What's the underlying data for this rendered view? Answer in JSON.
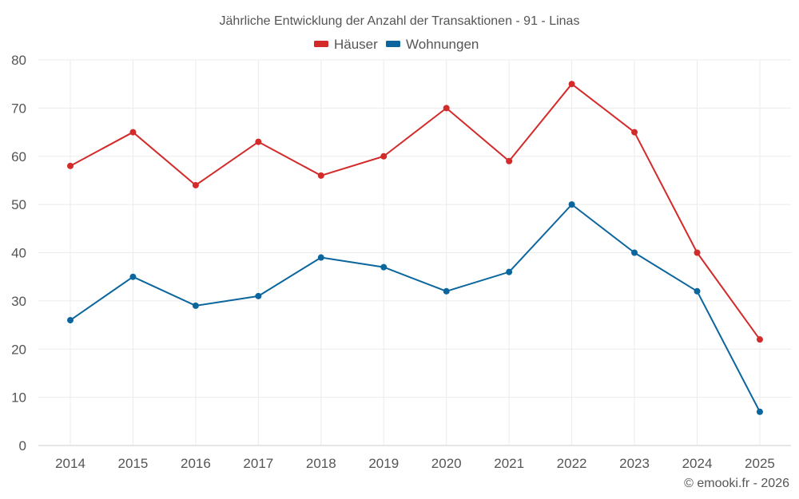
{
  "chart_data": {
    "type": "line",
    "title": "Jährliche Entwicklung der Anzahl der Transaktionen - 91 - Linas",
    "categories": [
      "2014",
      "2015",
      "2016",
      "2017",
      "2018",
      "2019",
      "2020",
      "2021",
      "2022",
      "2023",
      "2024",
      "2025"
    ],
    "series": [
      {
        "name": "Häuser",
        "color": "#d32a2a",
        "values": [
          58,
          65,
          54,
          63,
          56,
          60,
          70,
          59,
          75,
          65,
          40,
          22
        ]
      },
      {
        "name": "Wohnungen",
        "color": "#0b669d",
        "values": [
          26,
          35,
          29,
          31,
          39,
          37,
          32,
          36,
          50,
          40,
          32,
          7
        ]
      }
    ],
    "ylim": [
      0,
      80
    ],
    "yticks": [
      0,
      10,
      20,
      30,
      40,
      50,
      60,
      70,
      80
    ],
    "xlabel": "",
    "ylabel": "",
    "grid": true,
    "legend": "top-center"
  },
  "credit": "© emooki.fr - 2026"
}
